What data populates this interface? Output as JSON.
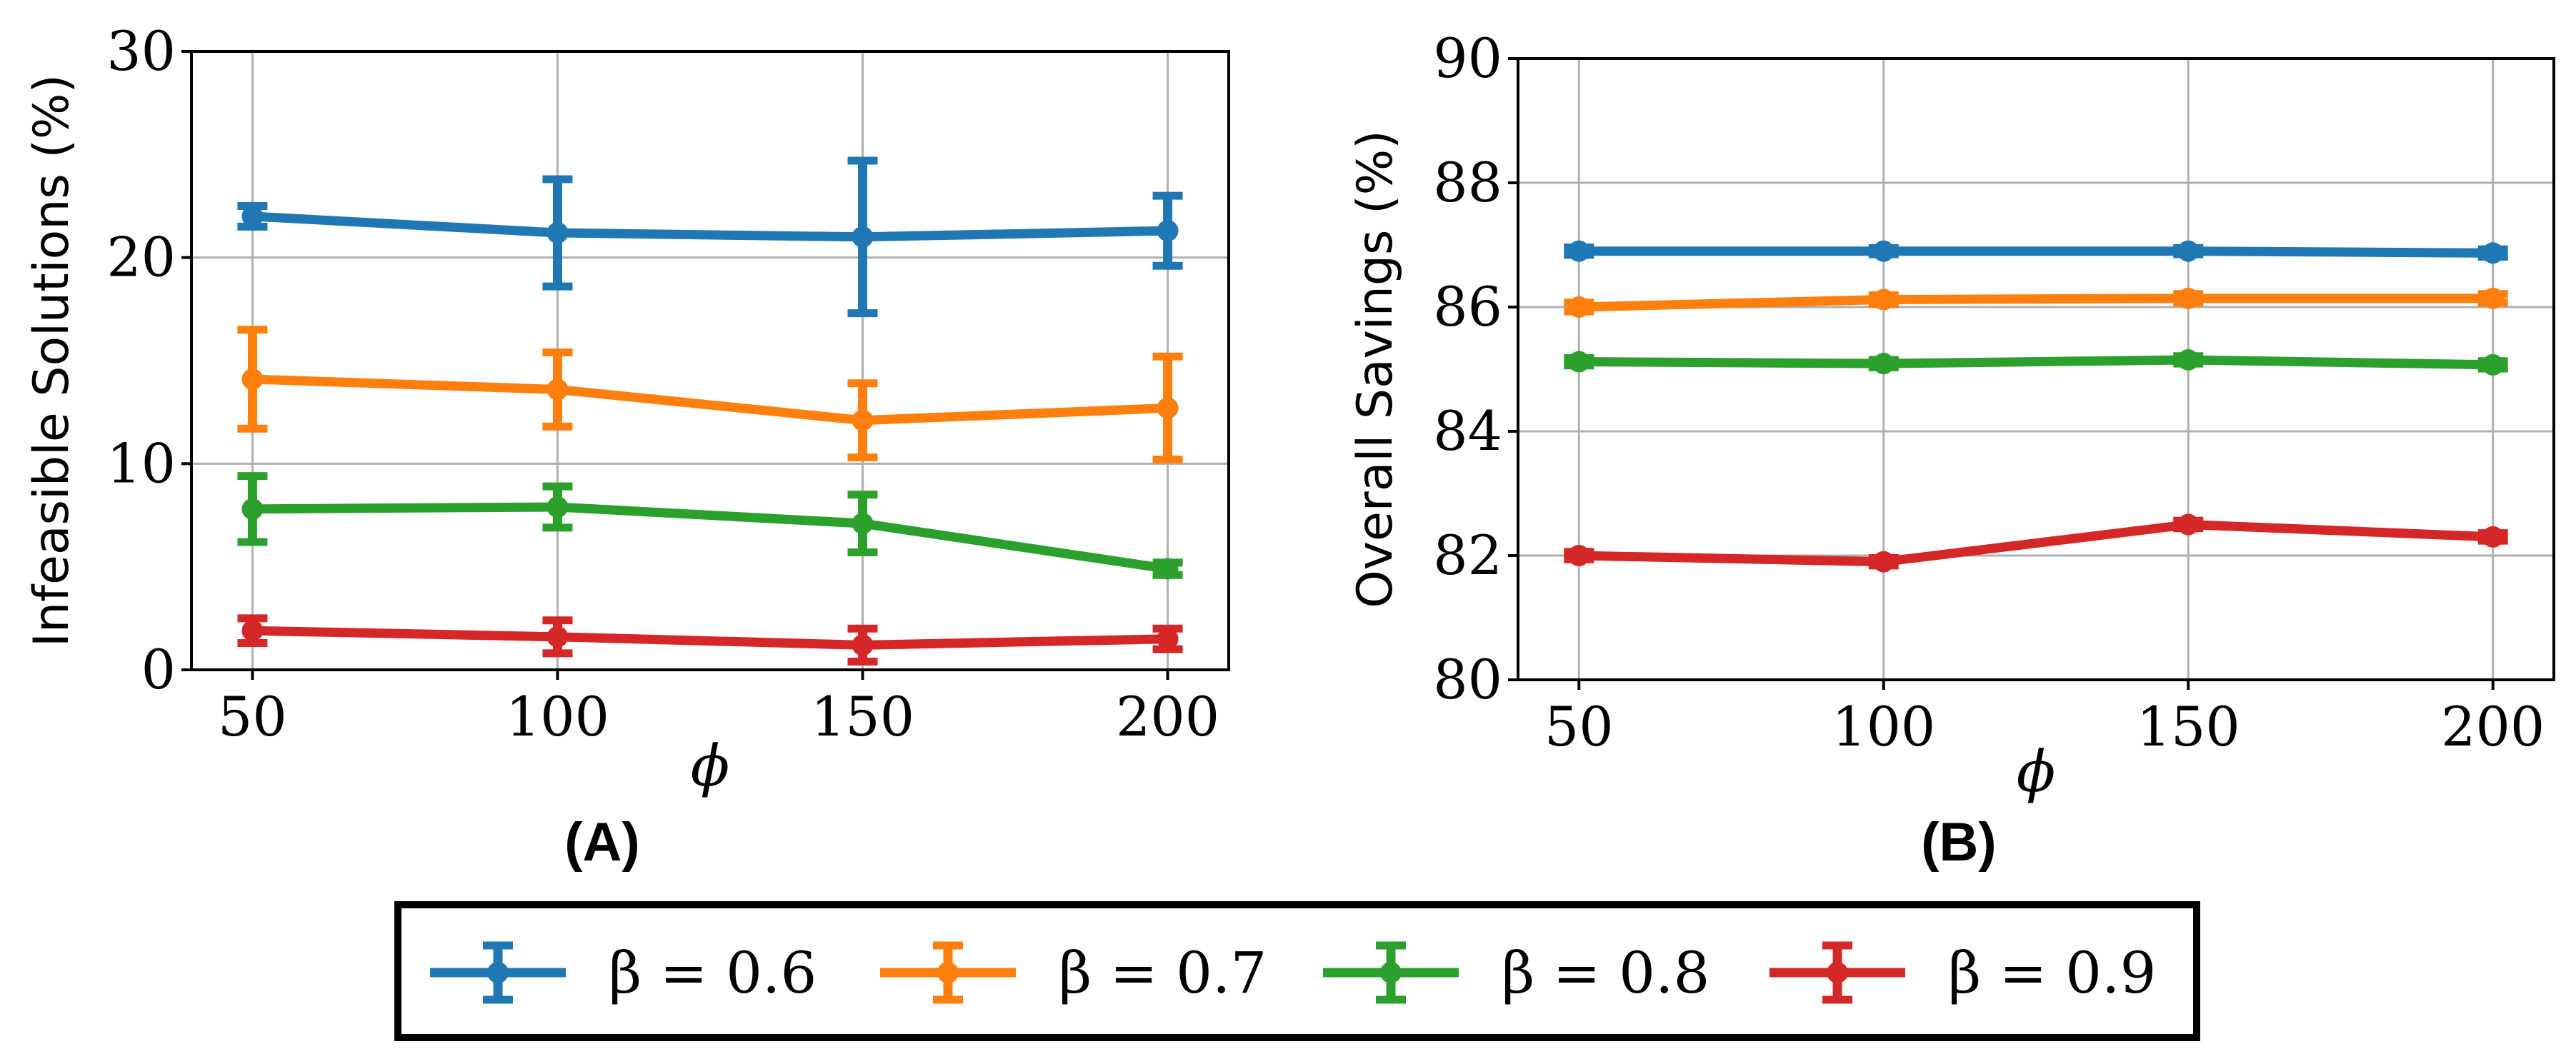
{
  "colors": {
    "b06": "#1f77b4",
    "b07": "#ff7f0e",
    "b08": "#2ca02c",
    "b09": "#d62728"
  },
  "legend": {
    "entries": [
      {
        "label": "β = 0.6",
        "color": "#1f77b4"
      },
      {
        "label": "β = 0.7",
        "color": "#ff7f0e"
      },
      {
        "label": "β = 0.8",
        "color": "#2ca02c"
      },
      {
        "label": "β = 0.9",
        "color": "#d62728"
      }
    ]
  },
  "chart_data": [
    {
      "type": "line",
      "panel_label": "(A)",
      "xlabel": "ϕ",
      "ylabel": "Infeasible Solutions (%)",
      "x": [
        50,
        100,
        150,
        200
      ],
      "xticks": [
        "50",
        "100",
        "150",
        "200"
      ],
      "ylim": [
        0,
        30
      ],
      "yticks": [
        "0",
        "10",
        "20",
        "30"
      ],
      "grid": true,
      "series": [
        {
          "name": "β = 0.6",
          "values": [
            22.0,
            21.2,
            21.0,
            21.3
          ],
          "err": [
            0.5,
            2.6,
            3.7,
            1.7
          ]
        },
        {
          "name": "β = 0.7",
          "values": [
            14.1,
            13.6,
            12.1,
            12.7
          ],
          "err": [
            2.4,
            1.8,
            1.8,
            2.5
          ]
        },
        {
          "name": "β = 0.8",
          "values": [
            7.8,
            7.9,
            7.1,
            4.9
          ],
          "err": [
            1.6,
            1.0,
            1.4,
            0.3
          ]
        },
        {
          "name": "β = 0.9",
          "values": [
            1.9,
            1.6,
            1.2,
            1.5
          ],
          "err": [
            0.6,
            0.8,
            0.8,
            0.5
          ]
        }
      ]
    },
    {
      "type": "line",
      "panel_label": "(B)",
      "xlabel": "ϕ",
      "ylabel": "Overall Savings (%)",
      "x": [
        50,
        100,
        150,
        200
      ],
      "xticks": [
        "50",
        "100",
        "150",
        "200"
      ],
      "ylim": [
        80,
        90
      ],
      "yticks": [
        "80",
        "82",
        "84",
        "86",
        "88",
        "90"
      ],
      "grid": true,
      "series": [
        {
          "name": "β = 0.6",
          "values": [
            86.9,
            86.9,
            86.9,
            86.87
          ],
          "err": [
            0.06,
            0.05,
            0.05,
            0.06
          ]
        },
        {
          "name": "β = 0.7",
          "values": [
            86.0,
            86.12,
            86.14,
            86.14
          ],
          "err": [
            0.07,
            0.07,
            0.07,
            0.07
          ]
        },
        {
          "name": "β = 0.8",
          "values": [
            85.12,
            85.09,
            85.15,
            85.07
          ],
          "err": [
            0.06,
            0.06,
            0.06,
            0.06
          ]
        },
        {
          "name": "β = 0.9",
          "values": [
            82.0,
            81.9,
            82.5,
            82.3
          ],
          "err": [
            0.06,
            0.06,
            0.06,
            0.06
          ]
        }
      ]
    }
  ]
}
